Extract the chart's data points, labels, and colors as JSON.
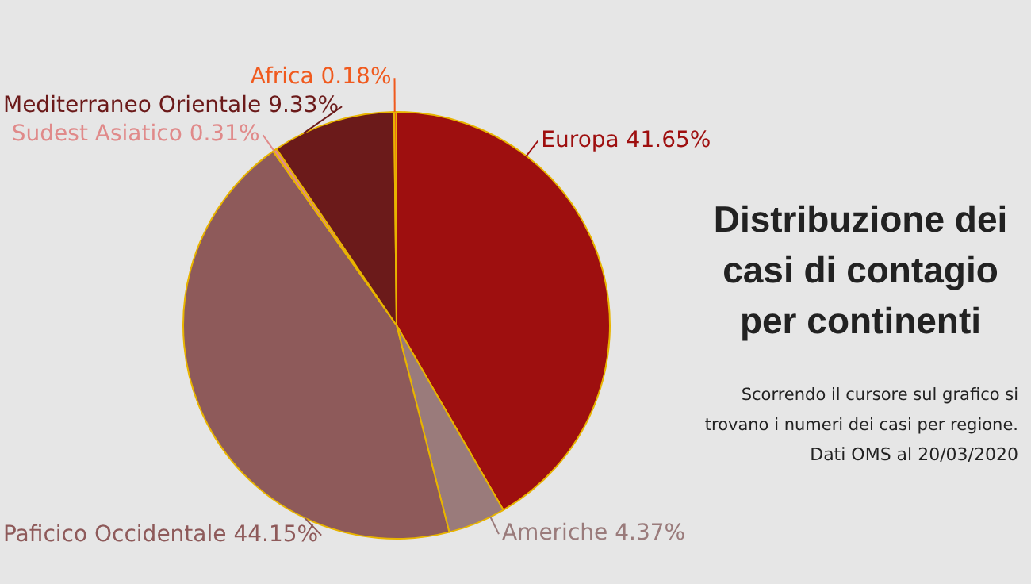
{
  "chart_data": {
    "type": "pie",
    "title": "Distribuzione dei casi di contagio per continenti",
    "subtitle": "Scorrendo il cursore sul grafico si trovano i numeri dei casi per regione.",
    "annotations": [
      "Dati OMS al 20/03/2020"
    ],
    "categories": [
      "Europa",
      "Americhe",
      "Paficico Occidentale",
      "Sudest Asiatico",
      "Mediterraneo Orientale",
      "Africa"
    ],
    "values": [
      41.65,
      4.37,
      44.15,
      0.31,
      9.33,
      0.18
    ],
    "value_labels": [
      "41.65%",
      "4.37%",
      "44.15%",
      "0.31%",
      "9.33%",
      "0.18%"
    ],
    "colors": [
      "#9e0f0f",
      "#9a7b7b",
      "#8e5a5a",
      "#e08a8a",
      "#6b1a1a",
      "#f05a1e"
    ],
    "legend": false
  }
}
